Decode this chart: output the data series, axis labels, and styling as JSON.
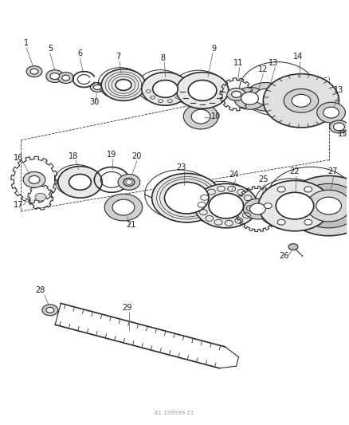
{
  "background_color": "#ffffff",
  "line_color": "#2a2a2a",
  "label_color": "#1a1a1a",
  "fig_width": 4.38,
  "fig_height": 5.33,
  "dpi": 100,
  "footnote": "81 199999 21"
}
